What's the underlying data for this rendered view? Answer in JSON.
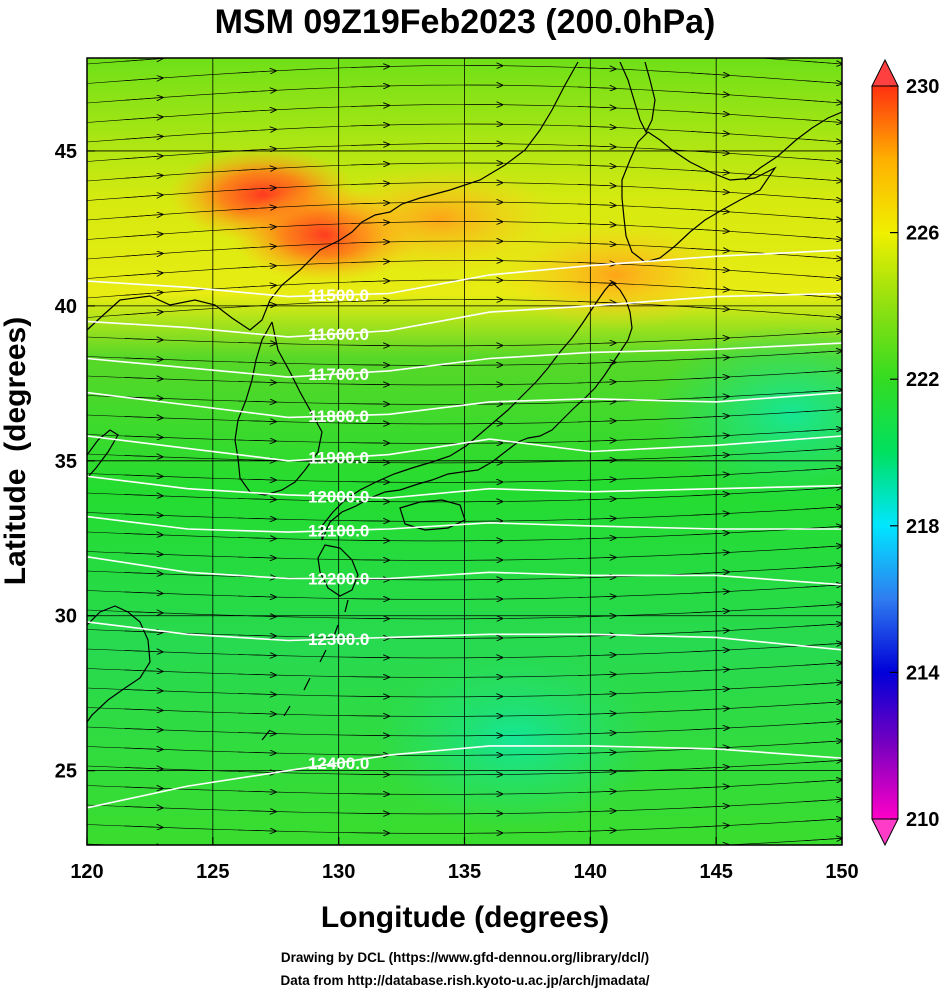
{
  "title": "MSM 09Z19Feb2023 (200.0hPa)",
  "x_axis": {
    "label": "Longitude (degrees)",
    "range": [
      120,
      150
    ],
    "ticks": [
      120,
      125,
      130,
      135,
      140,
      145,
      150
    ]
  },
  "y_axis": {
    "label": "Latitude  (degrees)",
    "range": [
      22.6,
      48
    ],
    "ticks": [
      25,
      30,
      35,
      40,
      45
    ]
  },
  "colorbar": {
    "range": [
      210,
      230
    ],
    "ticks": [
      210,
      214,
      218,
      222,
      226,
      230
    ],
    "colors": [
      "#ff00c8",
      "#7a00c0",
      "#0000d8",
      "#2f7cf0",
      "#00e6ff",
      "#00e060",
      "#34dc22",
      "#90e010",
      "#f0f000",
      "#ffb000",
      "#ff3010"
    ]
  },
  "temperature_field": {
    "background_value": 223,
    "features": [
      {
        "lon": 127.0,
        "lat": 43.6,
        "value": 229
      },
      {
        "lon": 129.5,
        "lat": 42.3,
        "value": 228
      },
      {
        "lon": 134.0,
        "lat": 42.8,
        "value": 227
      },
      {
        "lon": 141.0,
        "lat": 41.0,
        "value": 226
      },
      {
        "lon": 148.0,
        "lat": 36.5,
        "value": 220
      },
      {
        "lon": 137.0,
        "lat": 26.0,
        "value": 220
      }
    ]
  },
  "height_contours": [
    {
      "label": "11500.0",
      "value": 11500,
      "points": [
        [
          120,
          40.8
        ],
        [
          124,
          40.6
        ],
        [
          128,
          40.3
        ],
        [
          132,
          40.4
        ],
        [
          136,
          41.0
        ],
        [
          140,
          41.3
        ],
        [
          145,
          41.6
        ],
        [
          150,
          41.8
        ]
      ]
    },
    {
      "label": "11600.0",
      "value": 11600,
      "points": [
        [
          120,
          39.5
        ],
        [
          124,
          39.3
        ],
        [
          128,
          39.0
        ],
        [
          132,
          39.2
        ],
        [
          136,
          39.8
        ],
        [
          140,
          40.0
        ],
        [
          145,
          40.3
        ],
        [
          150,
          40.4
        ]
      ]
    },
    {
      "label": "11700.0",
      "value": 11700,
      "points": [
        [
          120,
          38.3
        ],
        [
          124,
          38.0
        ],
        [
          128,
          37.7
        ],
        [
          132,
          37.9
        ],
        [
          136,
          38.3
        ],
        [
          140,
          38.5
        ],
        [
          145,
          38.6
        ],
        [
          150,
          38.8
        ]
      ]
    },
    {
      "label": "11800.0",
      "value": 11800,
      "points": [
        [
          120,
          37.2
        ],
        [
          124,
          36.8
        ],
        [
          128,
          36.4
        ],
        [
          132,
          36.5
        ],
        [
          136,
          36.9
        ],
        [
          140,
          37.0
        ],
        [
          145,
          36.9
        ],
        [
          150,
          37.2
        ]
      ]
    },
    {
      "label": "11900.0",
      "value": 11900,
      "points": [
        [
          120,
          35.8
        ],
        [
          124,
          35.4
        ],
        [
          128,
          35.0
        ],
        [
          132,
          35.2
        ],
        [
          136,
          35.7
        ],
        [
          140,
          35.3
        ],
        [
          145,
          35.5
        ],
        [
          150,
          35.8
        ]
      ]
    },
    {
      "label": "12000.0",
      "value": 12000,
      "points": [
        [
          120,
          34.5
        ],
        [
          124,
          34.1
        ],
        [
          128,
          33.9
        ],
        [
          132,
          33.8
        ],
        [
          136,
          34.1
        ],
        [
          140,
          34.0
        ],
        [
          145,
          34.1
        ],
        [
          150,
          34.2
        ]
      ]
    },
    {
      "label": "12100.0",
      "value": 12100,
      "points": [
        [
          120,
          33.2
        ],
        [
          124,
          32.8
        ],
        [
          128,
          32.7
        ],
        [
          132,
          32.8
        ],
        [
          136,
          33.0
        ],
        [
          140,
          32.9
        ],
        [
          145,
          32.8
        ],
        [
          150,
          32.8
        ]
      ]
    },
    {
      "label": "12200.0",
      "value": 12200,
      "points": [
        [
          120,
          31.9
        ],
        [
          124,
          31.4
        ],
        [
          128,
          31.2
        ],
        [
          132,
          31.2
        ],
        [
          136,
          31.4
        ],
        [
          140,
          31.3
        ],
        [
          145,
          31.3
        ],
        [
          150,
          31.0
        ]
      ]
    },
    {
      "label": "12300.0",
      "value": 12300,
      "points": [
        [
          120,
          29.8
        ],
        [
          124,
          29.4
        ],
        [
          128,
          29.2
        ],
        [
          132,
          29.3
        ],
        [
          136,
          29.4
        ],
        [
          140,
          29.4
        ],
        [
          145,
          29.3
        ],
        [
          150,
          28.9
        ]
      ]
    },
    {
      "label": "12400.0",
      "value": 12400,
      "points": [
        [
          120,
          23.8
        ],
        [
          124,
          24.5
        ],
        [
          128,
          25.0
        ],
        [
          132,
          25.5
        ],
        [
          136,
          25.8
        ],
        [
          140,
          25.8
        ],
        [
          145,
          25.7
        ],
        [
          150,
          25.4
        ]
      ]
    }
  ],
  "credits": [
    "Drawing by DCL (https://www.gfd-dennou.org/library/dcl/)",
    "Data from http://database.rish.kyoto-u.ac.jp/arch/jmadata/"
  ]
}
